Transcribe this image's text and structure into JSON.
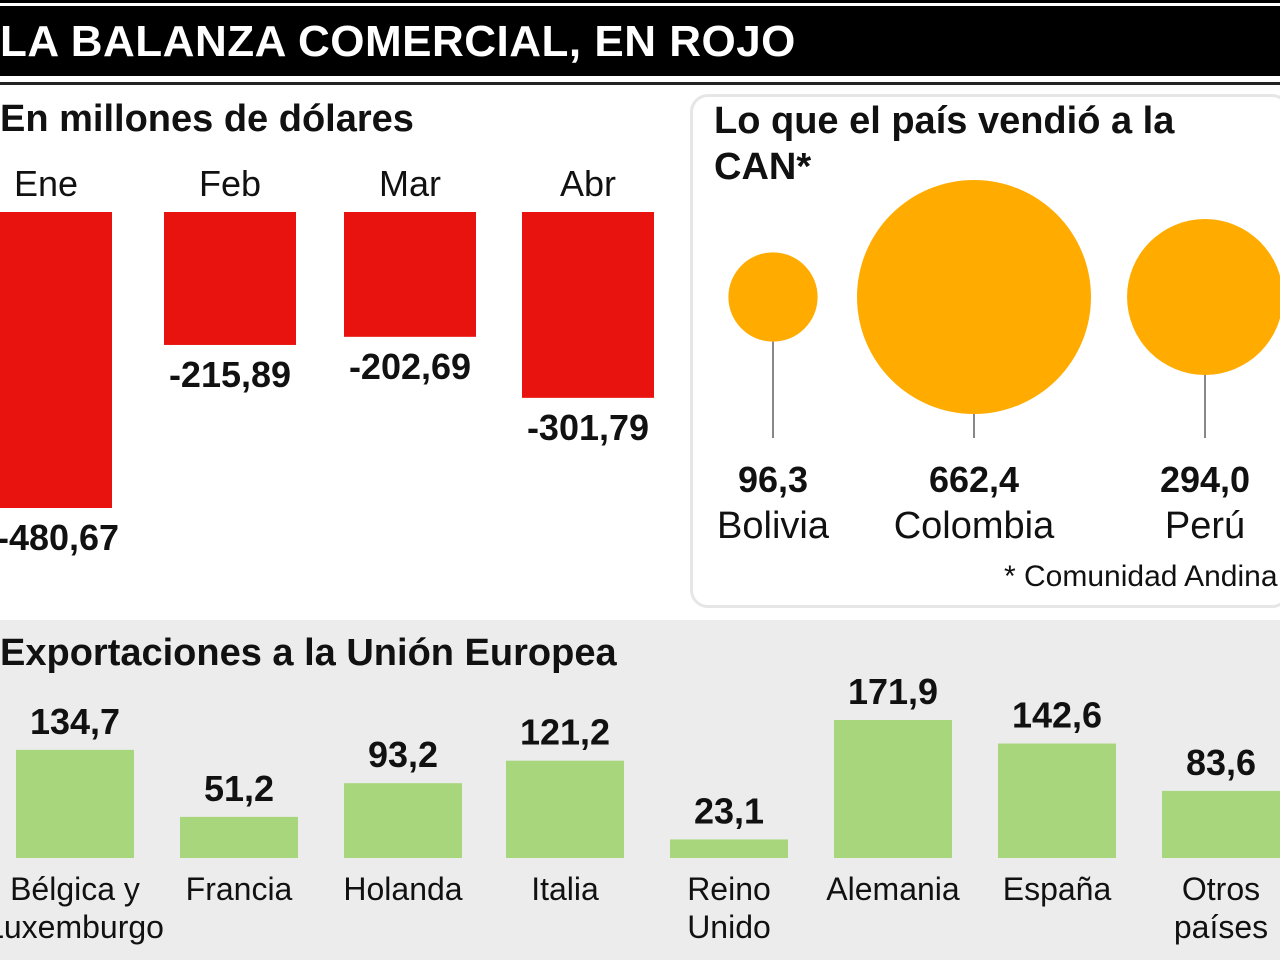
{
  "header": {
    "title": "LA BALANZA COMERCIAL, EN ROJO"
  },
  "left": {
    "subtitle": "En millones de dólares"
  },
  "right": {
    "title": "Lo que el país vendió a la CAN*",
    "footnote": "* Comunidad Andina"
  },
  "bottom": {
    "title": "Exportaciones a  la Unión Europea"
  },
  "colors": {
    "deficit": "#e8120e",
    "can": "#ffab00",
    "eu": "#a8d67c",
    "eu_panel": "#ececec"
  },
  "chart_data": [
    {
      "type": "bar",
      "title": "En millones de dólares",
      "categories": [
        "Ene",
        "Feb",
        "Mar",
        "Abr"
      ],
      "values": [
        -480.67,
        -215.89,
        -202.69,
        -301.79
      ],
      "labels": [
        "-480,67",
        "-215,89",
        "-202,69",
        "-301,79"
      ],
      "ylim": [
        -500,
        0
      ],
      "grid": false
    },
    {
      "type": "scatter",
      "title": "Lo que el país vendió a la CAN*",
      "categories": [
        "Bolivia",
        "Colombia",
        "Perú"
      ],
      "values": [
        96.3,
        662.4,
        294.0
      ],
      "labels": [
        "96,3",
        "662,4",
        "294,0"
      ]
    },
    {
      "type": "bar",
      "title": "Exportaciones a  la Unión Europea",
      "categories": [
        "Bélgica y Luxemburgo",
        "Francia",
        "Holanda",
        "Italia",
        "Reino Unido",
        "Alemania",
        "España",
        "Otros países"
      ],
      "category_lines": [
        [
          "Bélgica y",
          "Luxemburgo"
        ],
        [
          "Francia"
        ],
        [
          "Holanda"
        ],
        [
          "Italia"
        ],
        [
          "Reino",
          "Unido"
        ],
        [
          "Alemania"
        ],
        [
          "España"
        ],
        [
          "Otros",
          "países"
        ]
      ],
      "values": [
        134.7,
        51.2,
        93.2,
        121.2,
        23.1,
        171.9,
        142.6,
        83.6
      ],
      "labels": [
        "134,7",
        "51,2",
        "93,2",
        "121,2",
        "23,1",
        "171,9",
        "142,6",
        "83,6"
      ],
      "ylim": [
        0,
        180
      ],
      "grid": false
    }
  ]
}
